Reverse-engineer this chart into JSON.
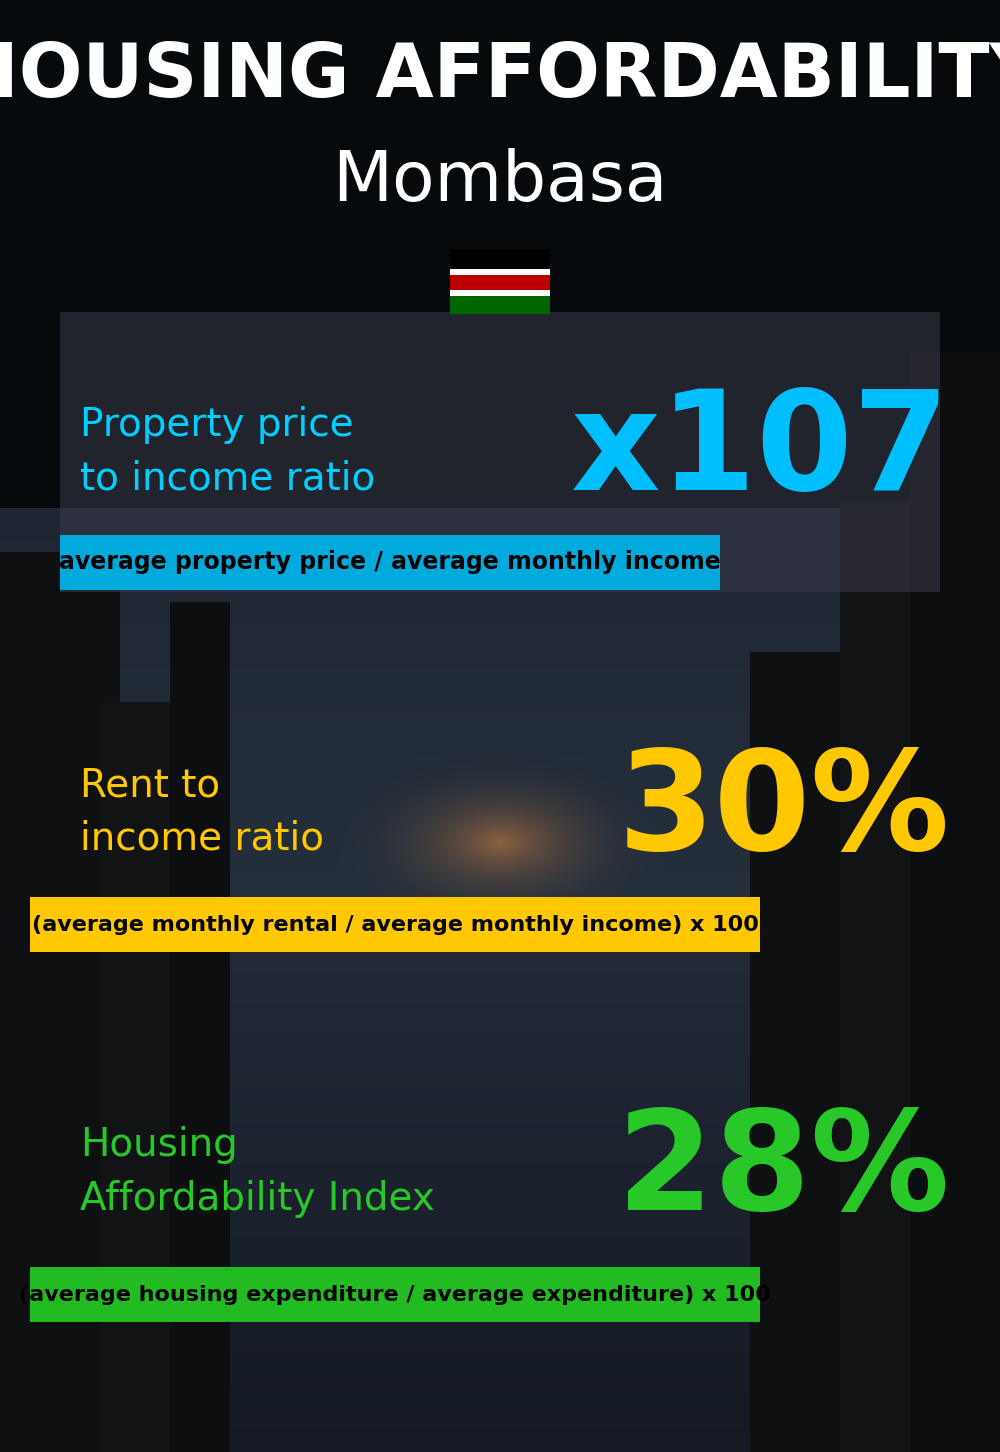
{
  "title_line1": "HOUSING AFFORDABILITY",
  "title_line2": "Mombasa",
  "flag_emoji": "🇰🇪",
  "section1_label": "Property price\nto income ratio",
  "section1_value": "x107",
  "section1_label_color": "#00cfff",
  "section1_value_color": "#00bfff",
  "section1_banner": "average property price / average monthly income",
  "section1_banner_bg": "#00aadd",
  "section2_label": "Rent to\nincome ratio",
  "section2_value": "30%",
  "section2_label_color": "#ffc800",
  "section2_value_color": "#ffc800",
  "section2_banner": "(average monthly rental / average monthly income) x 100",
  "section2_banner_bg": "#ffc800",
  "section3_label": "Housing\nAffordability Index",
  "section3_value": "28%",
  "section3_label_color": "#28c828",
  "section3_value_color": "#28c828",
  "section3_banner": "(average housing expenditure / average expenditure) x 100",
  "section3_banner_bg": "#22bb22",
  "title_color": "#ffffff",
  "banner_text_color": "#000000",
  "fig_width": 10.0,
  "fig_height": 14.52,
  "dpi": 100
}
